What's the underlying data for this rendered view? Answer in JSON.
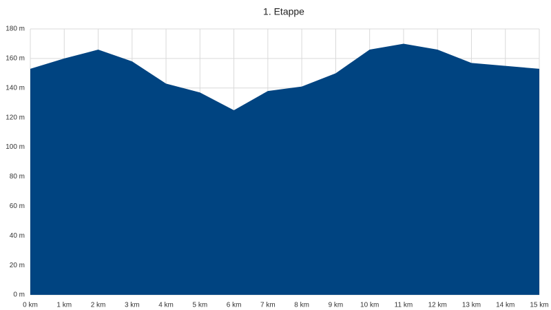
{
  "chart_data": {
    "type": "area",
    "title": "1. Etappe",
    "x": [
      0,
      1,
      2,
      3,
      4,
      5,
      6,
      7,
      8,
      9,
      10,
      11,
      12,
      13,
      14,
      15
    ],
    "values": [
      153,
      160,
      166,
      158,
      143,
      137,
      125,
      138,
      141,
      150,
      166,
      170,
      166,
      157,
      155,
      153
    ],
    "color": "#004481",
    "xlim": [
      0,
      15
    ],
    "xticks": [
      {
        "value": 0,
        "label": "0 km"
      },
      {
        "value": 1,
        "label": "1 km"
      },
      {
        "value": 2,
        "label": "2 km"
      },
      {
        "value": 3,
        "label": "3 km"
      },
      {
        "value": 4,
        "label": "4 km"
      },
      {
        "value": 5,
        "label": "5 km"
      },
      {
        "value": 6,
        "label": "6 km"
      },
      {
        "value": 7,
        "label": "7 km"
      },
      {
        "value": 8,
        "label": "8 km"
      },
      {
        "value": 9,
        "label": "9 km"
      },
      {
        "value": 10,
        "label": "10 km"
      },
      {
        "value": 11,
        "label": "11 km"
      },
      {
        "value": 12,
        "label": "12 km"
      },
      {
        "value": 13,
        "label": "13 km"
      },
      {
        "value": 14,
        "label": "14 km"
      },
      {
        "value": 15,
        "label": "15 km"
      }
    ],
    "ylim": [
      0,
      180
    ],
    "yticks": [
      {
        "value": 0,
        "label": "0 m"
      },
      {
        "value": 20,
        "label": "20 m"
      },
      {
        "value": 40,
        "label": "40 m"
      },
      {
        "value": 60,
        "label": "60 m"
      },
      {
        "value": 80,
        "label": "80 m"
      },
      {
        "value": 100,
        "label": "100 m"
      },
      {
        "value": 120,
        "label": "120 m"
      },
      {
        "value": 140,
        "label": "140 m"
      },
      {
        "value": 160,
        "label": "160 m"
      },
      {
        "value": 180,
        "label": "180 m"
      }
    ],
    "grid": true
  }
}
